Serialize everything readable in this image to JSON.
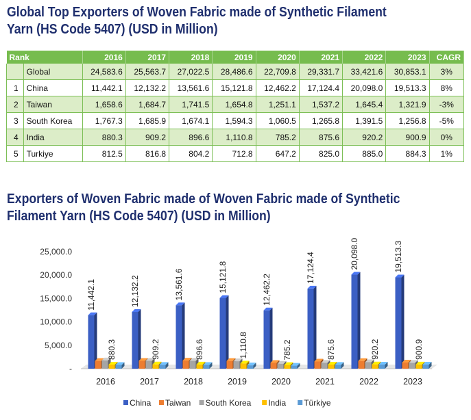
{
  "title_top": "Global Top Exporters of Woven Fabric made of Synthetic Filament Yarn (HS Code 5407) (USD in Million)",
  "title_top_line1": "Global Top Exporters of Woven Fabric made of Synthetic Filament",
  "title_top_line2": "Yarn (HS Code 5407) (USD in Million)",
  "table": {
    "headers": [
      "Rank",
      "2016",
      "2017",
      "2018",
      "2019",
      "2020",
      "2021",
      "2022",
      "2023",
      "CAGR"
    ],
    "rows": [
      {
        "rank": "",
        "country": "Global",
        "values": [
          "24,583.6",
          "25,563.7",
          "27,022.5",
          "28,486.6",
          "22,709.8",
          "29,331.7",
          "33,421.6",
          "30,853.1"
        ],
        "cagr": "3%"
      },
      {
        "rank": "1",
        "country": "China",
        "values": [
          "11,442.1",
          "12,132.2",
          "13,561.6",
          "15,121.8",
          "12,462.2",
          "17,124.4",
          "20,098.0",
          "19,513.3"
        ],
        "cagr": "8%"
      },
      {
        "rank": "2",
        "country": "Taiwan",
        "values": [
          "1,658.6",
          "1,684.7",
          "1,741.5",
          "1,654.8",
          "1,251.1",
          "1,537.2",
          "1,645.4",
          "1,321.9"
        ],
        "cagr": "-3%"
      },
      {
        "rank": "3",
        "country": "South Korea",
        "values": [
          "1,767.3",
          "1,685.9",
          "1,674.1",
          "1,594.3",
          "1,060.5",
          "1,265.8",
          "1,391.5",
          "1,256.8"
        ],
        "cagr": "-5%"
      },
      {
        "rank": "4",
        "country": "India",
        "values": [
          "880.3",
          "909.2",
          "896.6",
          "1,110.8",
          "785.2",
          "875.6",
          "920.2",
          "900.9"
        ],
        "cagr": "0%"
      },
      {
        "rank": "5",
        "country": "Turkiye",
        "values": [
          "812.5",
          "816.8",
          "804.2",
          "712.8",
          "647.2",
          "825.0",
          "885.0",
          "884.3"
        ],
        "cagr": "1%"
      }
    ]
  },
  "title_chart": "Exporters of Woven Fabric made of Woven Fabric made of Synthetic Filament Yarn (HS Code 5407) (USD in Million)",
  "title_chart_line1": "Exporters of Woven Fabric made of Woven Fabric made of Synthetic",
  "title_chart_line2": "Filament Yarn (HS Code 5407) (USD in Million)",
  "chart_data": {
    "type": "bar",
    "categories": [
      "2016",
      "2017",
      "2018",
      "2019",
      "2020",
      "2021",
      "2022",
      "2023"
    ],
    "series": [
      {
        "name": "China",
        "values": [
          11442.1,
          12132.2,
          13561.6,
          15121.8,
          12462.2,
          17124.4,
          20098.0,
          19513.3
        ],
        "labels": [
          "11,442.1",
          "12,132.2",
          "13,561.6",
          "15,121.8",
          "12,462.2",
          "17,124.4",
          "20,098.0",
          "19,513.3"
        ],
        "color": "#3b5fc4"
      },
      {
        "name": "Taiwan",
        "values": [
          1658.6,
          1684.7,
          1741.5,
          1654.8,
          1251.1,
          1537.2,
          1645.4,
          1321.9
        ],
        "color": "#ed7d31"
      },
      {
        "name": "South Korea",
        "values": [
          1767.3,
          1685.9,
          1674.1,
          1594.3,
          1060.5,
          1265.8,
          1391.5,
          1256.8
        ],
        "color": "#a5a5a5"
      },
      {
        "name": "India",
        "values": [
          880.3,
          909.2,
          896.6,
          1110.8,
          785.2,
          875.6,
          920.2,
          900.9
        ],
        "labels": [
          "880.3",
          "909.2",
          "896.6",
          "1,110.8",
          "785.2",
          "875.6",
          "920.2",
          "900.9"
        ],
        "color": "#ffc000"
      },
      {
        "name": "Türkiye",
        "values": [
          812.5,
          816.8,
          804.2,
          712.8,
          647.2,
          825.0,
          885.0,
          884.3
        ],
        "color": "#5b9bd5"
      }
    ],
    "yticks": [
      "-",
      "5,000.0",
      "10,000.0",
      "15,000.0",
      "20,000.0",
      "25,000.0"
    ],
    "ylim": [
      0,
      25000
    ],
    "legend_position": "bottom",
    "grid": false,
    "bar_style": "3d"
  }
}
